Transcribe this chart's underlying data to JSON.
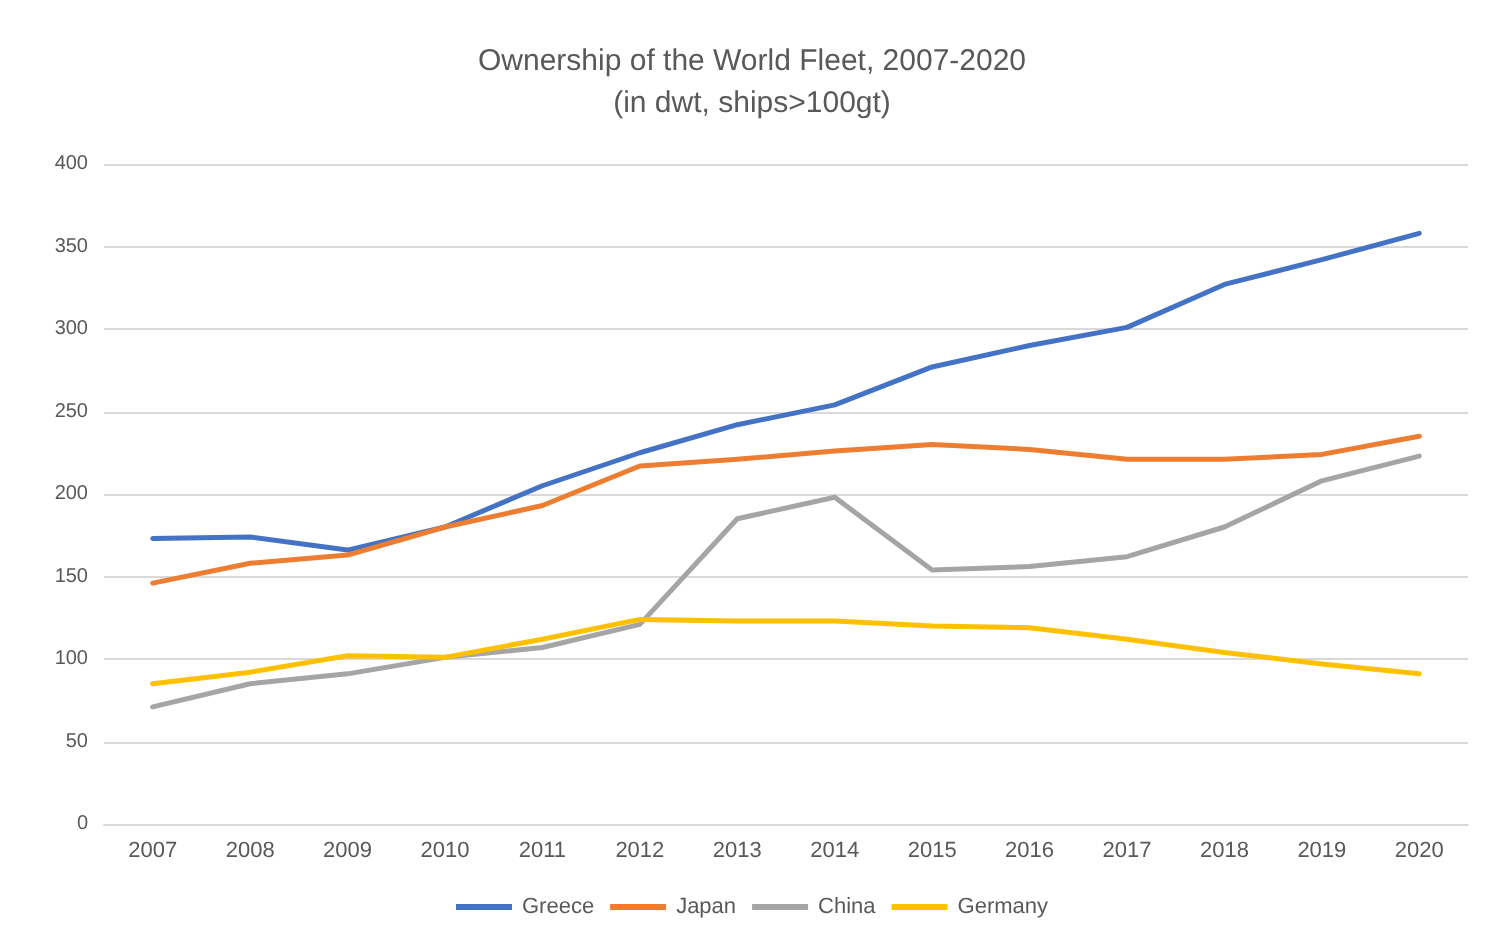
{
  "chart_data": {
    "type": "line",
    "title": "Ownership of the World Fleet, 2007-2020",
    "subtitle": "(in dwt, ships>100gt)",
    "categories": [
      "2007",
      "2008",
      "2009",
      "2010",
      "2011",
      "2012",
      "2013",
      "2014",
      "2015",
      "2016",
      "2017",
      "2018",
      "2019",
      "2020"
    ],
    "series": [
      {
        "name": "Greece",
        "color": "#4472c4",
        "values": [
          173,
          174,
          166,
          180,
          205,
          225,
          242,
          254,
          277,
          290,
          301,
          327,
          342,
          358
        ]
      },
      {
        "name": "Japan",
        "color": "#ed7d31",
        "values": [
          146,
          158,
          163,
          180,
          193,
          217,
          221,
          226,
          230,
          227,
          221,
          221,
          224,
          235
        ]
      },
      {
        "name": "China",
        "color": "#a5a5a5",
        "values": [
          71,
          85,
          91,
          101,
          107,
          121,
          185,
          198,
          154,
          156,
          162,
          180,
          208,
          223
        ]
      },
      {
        "name": "Germany",
        "color": "#ffc000",
        "values": [
          85,
          92,
          102,
          101,
          112,
          124,
          123,
          123,
          120,
          119,
          112,
          104,
          97,
          91
        ]
      }
    ],
    "ylim": [
      0,
      400
    ],
    "yticks": [
      0,
      50,
      100,
      150,
      200,
      250,
      300,
      350,
      400
    ],
    "grid": "y",
    "legend": "bottom",
    "marker": "none",
    "line_style": "solid"
  }
}
